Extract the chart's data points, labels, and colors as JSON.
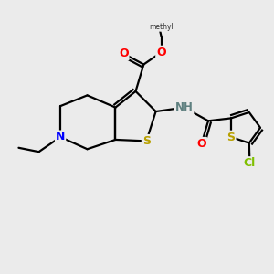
{
  "bg_color": "#ebebeb",
  "bond_color": "#000000",
  "atom_colors": {
    "S": "#b8a000",
    "N": "#0000ff",
    "O": "#ff0000",
    "Cl": "#7fbf00",
    "C": "#000000",
    "H": "#5f8080"
  },
  "figsize": [
    3.0,
    3.0
  ],
  "dpi": 100
}
